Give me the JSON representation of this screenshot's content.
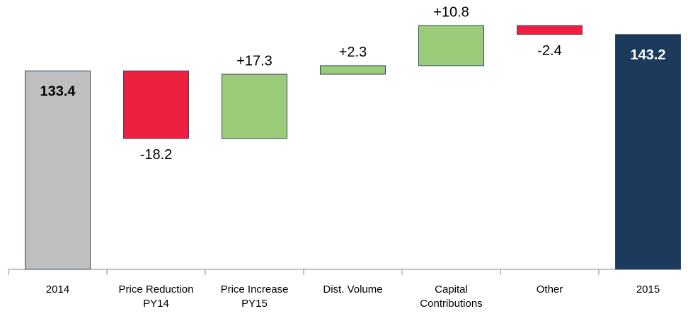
{
  "chart_data": {
    "type": "waterfall",
    "categories": [
      "2014",
      "Price Reduction PY14",
      "Price Increase PY15",
      "Dist. Volume",
      "Capital Contributions",
      "Other",
      "2015"
    ],
    "measure": [
      "absolute",
      "relative",
      "relative",
      "relative",
      "relative",
      "relative",
      "absolute"
    ],
    "values": [
      133.4,
      -18.2,
      17.3,
      2.3,
      10.8,
      -2.4,
      143.2
    ],
    "value_labels": [
      "133.4",
      "-18.2",
      "+17.3",
      "+2.3",
      "+10.8",
      "-2.4",
      "143.2"
    ],
    "colors": [
      "#bfbfbf",
      "#ee2040",
      "#9bcb78",
      "#9bcb78",
      "#9bcb78",
      "#ee2040",
      "#1b3a5c"
    ],
    "ylim": [
      80,
      150
    ]
  }
}
